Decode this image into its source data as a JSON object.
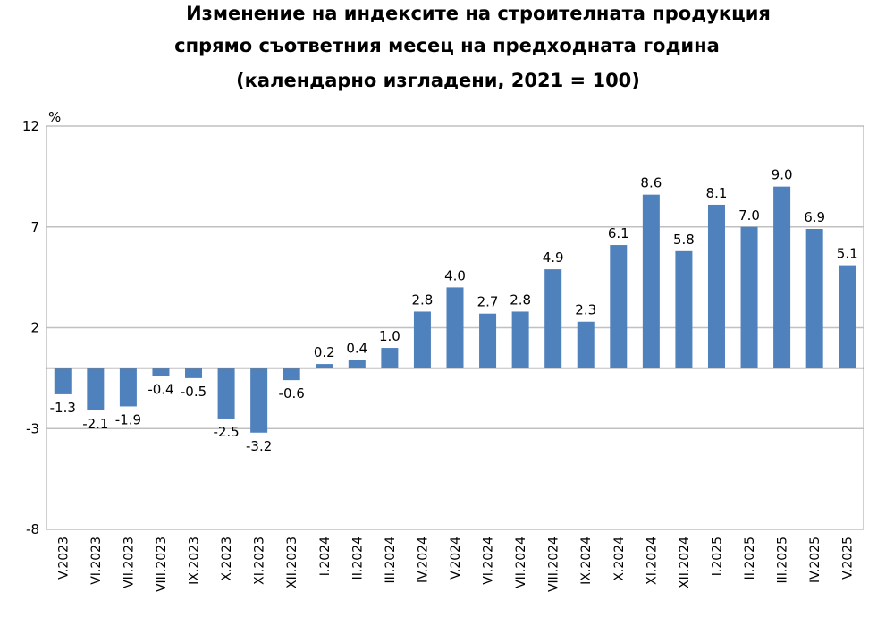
{
  "title": {
    "line1": "Изменение на индексите на строителната продукция",
    "line2": "спрямо съответния месец на предходната година",
    "line3": "(календарно изгладени, 2021 = 100)"
  },
  "colors": {
    "bar": "#4f81bd",
    "grid": "#c0c0c0",
    "axis": "#808080"
  },
  "chart_data": {
    "type": "bar",
    "title": "Изменение на индексите на строителната продукция спрямо съответния месец на предходната година (календарно изгладени, 2021 = 100)",
    "ylabel": "%",
    "xlabel": "",
    "ylim": [
      -8,
      12
    ],
    "yticks": [
      12,
      7,
      2,
      -3,
      -8
    ],
    "grid": true,
    "categories": [
      "V.2023",
      "VI.2023",
      "VII.2023",
      "VIII.2023",
      "IX.2023",
      "X.2023",
      "XI.2023",
      "XII.2023",
      "I.2024",
      "II.2024",
      "III.2024",
      "IV.2024",
      "V.2024",
      "VI.2024",
      "VII.2024",
      "VIII.2024",
      "IX.2024",
      "X.2024",
      "XI.2024",
      "XII.2024",
      "I.2025",
      "II.2025",
      "III.2025",
      "IV.2025",
      "V.2025"
    ],
    "values": [
      -1.3,
      -2.1,
      -1.9,
      -0.4,
      -0.5,
      -2.5,
      -3.2,
      -0.6,
      0.2,
      0.4,
      1.0,
      2.8,
      4.0,
      2.7,
      2.8,
      4.9,
      2.3,
      6.1,
      8.6,
      5.8,
      8.1,
      7.0,
      9.0,
      6.9,
      5.1
    ],
    "labels": [
      "-1.3",
      "-2.1",
      "-1.9",
      "-0.4",
      "-0.5",
      "-2.5",
      "-3.2",
      "-0.6",
      "0.2",
      "0.4",
      "1.0",
      "2.8",
      "4.0",
      "2.7",
      "2.8",
      "4.9",
      "2.3",
      "6.1",
      "8.6",
      "5.8",
      "8.1",
      "7.0",
      "9.0",
      "6.9",
      "5.1"
    ]
  }
}
